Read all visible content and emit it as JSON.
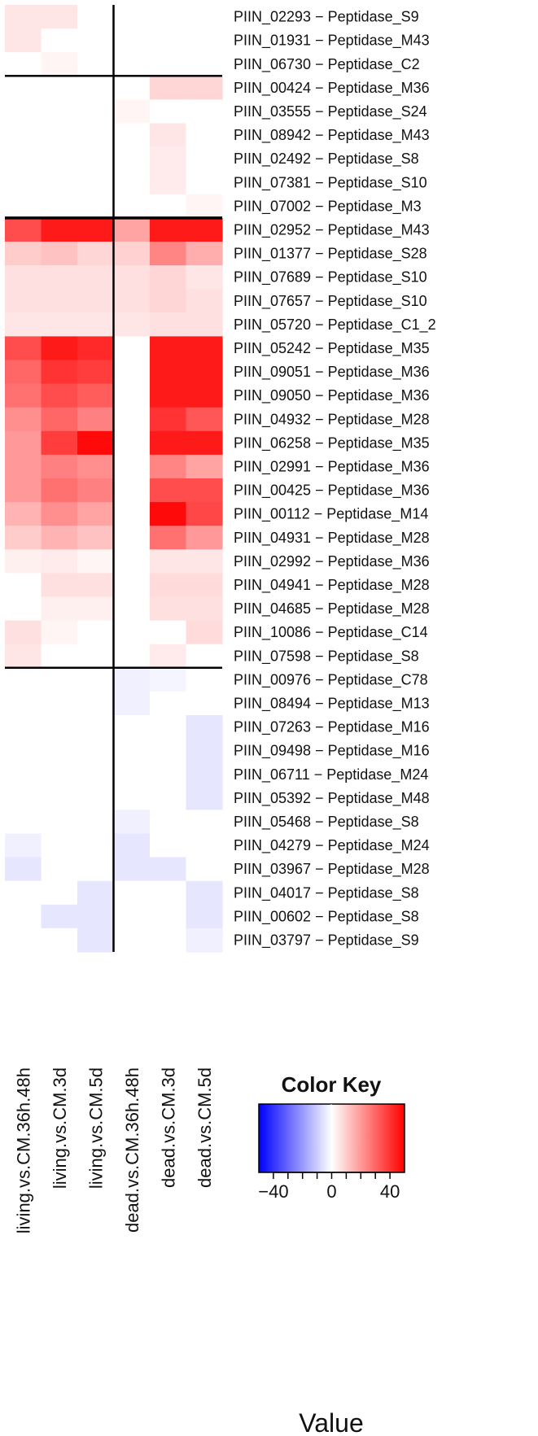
{
  "chart_data": {
    "type": "heatmap",
    "columns": [
      "living.vs.CM.36h.48h",
      "living.vs.CM.3d",
      "living.vs.CM.5d",
      "dead.vs.CM.36h.48h",
      "dead.vs.CM.3d",
      "dead.vs.CM.5d"
    ],
    "rows": [
      "PIIN_02293 − Peptidase_S9",
      "PIIN_01931 − Peptidase_M43",
      "PIIN_06730 − Peptidase_C2",
      "PIIN_00424 − Peptidase_M36",
      "PIIN_03555 − Peptidase_S24",
      "PIIN_08942 − Peptidase_M43",
      "PIIN_02492 − Peptidase_S8",
      "PIIN_07381 − Peptidase_S10",
      "PIIN_07002 − Peptidase_M3",
      "PIIN_02952 − Peptidase_M43",
      "PIIN_01377 − Peptidase_S28",
      "PIIN_07689 − Peptidase_S10",
      "PIIN_07657 − Peptidase_S10",
      "PIIN_05720 − Peptidase_C1_2",
      "PIIN_05242 − Peptidase_M35",
      "PIIN_09051 − Peptidase_M36",
      "PIIN_09050 − Peptidase_M36",
      "PIIN_04932 − Peptidase_M28",
      "PIIN_06258 − Peptidase_M35",
      "PIIN_02991 − Peptidase_M36",
      "PIIN_00425 − Peptidase_M36",
      "PIIN_00112 − Peptidase_M14",
      "PIIN_04931 − Peptidase_M28",
      "PIIN_02992 − Peptidase_M36",
      "PIIN_04941 − Peptidase_M28",
      "PIIN_04685 − Peptidase_M28",
      "PIIN_10086 − Peptidase_C14",
      "PIIN_07598 − Peptidase_S8",
      "PIIN_00976 − Peptidase_C78",
      "PIIN_08494 − Peptidase_M13",
      "PIIN_07263 − Peptidase_M16",
      "PIIN_09498 − Peptidase_M16",
      "PIIN_06711 − Peptidase_M24",
      "PIIN_05392 − Peptidase_M48",
      "PIIN_05468 − Peptidase_S8",
      "PIIN_04279 − Peptidase_M24",
      "PIIN_03967 − Peptidase_M28",
      "PIIN_04017 − Peptidase_S8",
      "PIIN_00602 − Peptidase_S8",
      "PIIN_03797 − Peptidase_S9"
    ],
    "values": [
      [
        5,
        5,
        0,
        0,
        0,
        0
      ],
      [
        5,
        0,
        0,
        0,
        0,
        0
      ],
      [
        0,
        2,
        0,
        0,
        0,
        0
      ],
      [
        0,
        0,
        0,
        0,
        8,
        8
      ],
      [
        0,
        0,
        0,
        2,
        0,
        0
      ],
      [
        0,
        0,
        0,
        0,
        5,
        0
      ],
      [
        0,
        0,
        0,
        0,
        4,
        0
      ],
      [
        0,
        0,
        0,
        0,
        4,
        0
      ],
      [
        0,
        0,
        0,
        0,
        0,
        2
      ],
      [
        35,
        45,
        45,
        18,
        45,
        45
      ],
      [
        10,
        12,
        8,
        9,
        24,
        16
      ],
      [
        6,
        6,
        6,
        6,
        8,
        5
      ],
      [
        6,
        6,
        6,
        6,
        8,
        6
      ],
      [
        5,
        5,
        5,
        5,
        6,
        6
      ],
      [
        35,
        45,
        42,
        0,
        45,
        45
      ],
      [
        30,
        40,
        38,
        0,
        45,
        45
      ],
      [
        28,
        35,
        32,
        0,
        45,
        45
      ],
      [
        22,
        30,
        25,
        0,
        40,
        33
      ],
      [
        20,
        38,
        48,
        0,
        45,
        45
      ],
      [
        20,
        25,
        22,
        0,
        24,
        18
      ],
      [
        20,
        28,
        25,
        0,
        35,
        35
      ],
      [
        15,
        22,
        18,
        0,
        48,
        36
      ],
      [
        10,
        15,
        12,
        0,
        28,
        20
      ],
      [
        3,
        4,
        2,
        0,
        5,
        5
      ],
      [
        0,
        6,
        6,
        0,
        7,
        7
      ],
      [
        0,
        3,
        3,
        0,
        6,
        6
      ],
      [
        6,
        2,
        0,
        0,
        0,
        7
      ],
      [
        5,
        0,
        0,
        0,
        4,
        0
      ],
      [
        0,
        0,
        0,
        -3,
        -2,
        0
      ],
      [
        0,
        0,
        0,
        -3,
        0,
        0
      ],
      [
        0,
        0,
        0,
        0,
        0,
        -5
      ],
      [
        0,
        0,
        0,
        0,
        0,
        -5
      ],
      [
        0,
        0,
        0,
        0,
        0,
        -5
      ],
      [
        0,
        0,
        0,
        0,
        0,
        -5
      ],
      [
        0,
        0,
        0,
        -3,
        0,
        0
      ],
      [
        -3,
        0,
        0,
        -5,
        0,
        0
      ],
      [
        -5,
        0,
        0,
        -5,
        -5,
        0
      ],
      [
        0,
        0,
        -5,
        0,
        0,
        -5
      ],
      [
        0,
        -5,
        -5,
        0,
        0,
        -5
      ],
      [
        0,
        0,
        -5,
        0,
        0,
        -3
      ]
    ],
    "row_separators_after": [
      2,
      8,
      27
    ],
    "column_separator_after": 2,
    "color_scale": {
      "low": "#0000ff",
      "mid": "#ffffff",
      "high": "#ff0000",
      "min": -50,
      "max": 50
    },
    "color_key": {
      "title": "Color Key",
      "label": "Value",
      "ticks": [
        -40,
        -30,
        -20,
        -10,
        0,
        10,
        20,
        30,
        40
      ],
      "tick_labels": [
        "−40",
        "0",
        "40"
      ]
    }
  }
}
